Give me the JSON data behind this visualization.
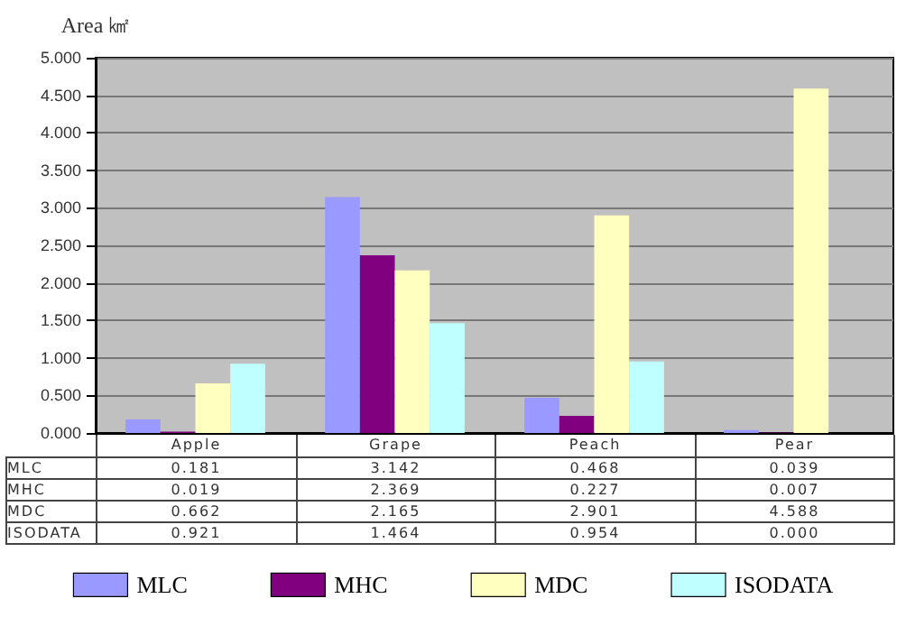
{
  "chart_data": {
    "type": "bar",
    "ylabel": "Area ㎢",
    "categories": [
      "Apple",
      "Grape",
      "Peach",
      "Pear"
    ],
    "series": [
      {
        "name": "MLC",
        "color": "#9999ff",
        "values": [
          0.181,
          3.142,
          0.468,
          0.039
        ],
        "value_labels": [
          "0.181",
          "3.142",
          "0.468",
          "0.039"
        ]
      },
      {
        "name": "MHC",
        "color": "#800080",
        "values": [
          0.019,
          2.369,
          0.227,
          0.007
        ],
        "value_labels": [
          "0.019",
          "2.369",
          "0.227",
          "0.007"
        ]
      },
      {
        "name": "MDC",
        "color": "#ffffc0",
        "values": [
          0.662,
          2.165,
          2.901,
          4.588
        ],
        "value_labels": [
          "0.662",
          "2.165",
          "2.901",
          "4.588"
        ]
      },
      {
        "name": "ISODATA",
        "color": "#c0ffff",
        "values": [
          0.921,
          1.464,
          0.954,
          0.0
        ],
        "value_labels": [
          "0.921",
          "1.464",
          "0.954",
          "0.000"
        ]
      }
    ],
    "ylim": [
      0,
      5
    ],
    "yticks": [
      {
        "value": 0,
        "label": "0.000"
      },
      {
        "value": 0.5,
        "label": "0.500"
      },
      {
        "value": 1,
        "label": "1.000"
      },
      {
        "value": 1.5,
        "label": "1.500"
      },
      {
        "value": 2,
        "label": "2.000"
      },
      {
        "value": 2.5,
        "label": "2.500"
      },
      {
        "value": 3,
        "label": "3.000"
      },
      {
        "value": 3.5,
        "label": "3.500"
      },
      {
        "value": 4,
        "label": "4.000"
      },
      {
        "value": 4.5,
        "label": "4.500"
      },
      {
        "value": 5,
        "label": "5.000"
      }
    ],
    "grid": "y",
    "legend": "bottom"
  }
}
